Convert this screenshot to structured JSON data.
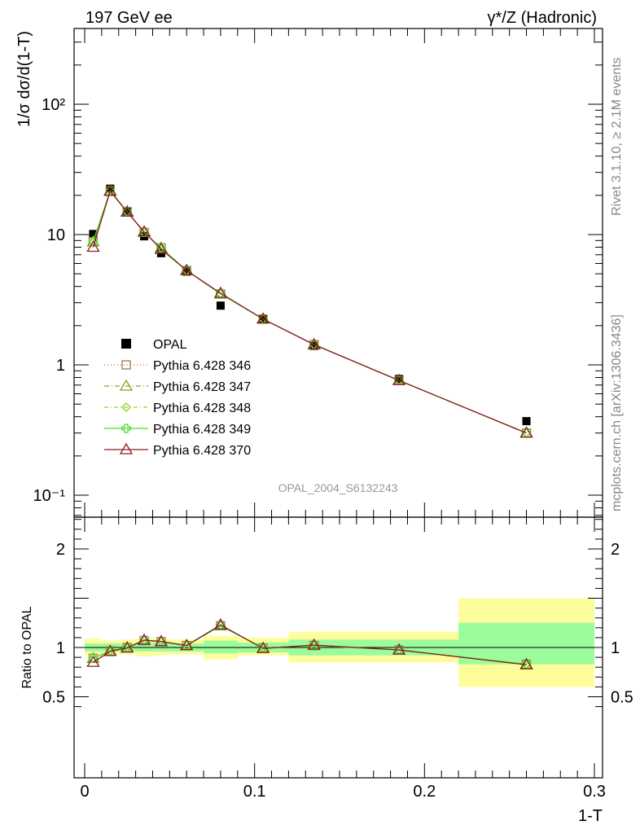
{
  "header": {
    "left_title": "197 GeV ee",
    "right_title": "γ*/Z (Hadronic)"
  },
  "side_text": {
    "rivet": "Rivet 3.1.10, ≥ 2.1M events",
    "mcplots": "mcplots.cern.ch [arXiv:1306.3436]"
  },
  "analysis_id": "OPAL_2004_S6132243",
  "chart_data": [
    {
      "type": "line",
      "panel": "main",
      "ylabel": "1/σ dσ/d(1-T)",
      "xlabel": "1-T",
      "yscale": "log",
      "xlim": [
        0,
        0.3
      ],
      "ylim": [
        0.06,
        400
      ],
      "ytick_labels": [
        "10⁻¹",
        "1",
        "10",
        "10²"
      ],
      "xtick_labels": [
        "0",
        "0.1",
        "0.2",
        "0.3"
      ],
      "x": [
        0.005,
        0.015,
        0.025,
        0.035,
        0.045,
        0.06,
        0.08,
        0.105,
        0.135,
        0.185,
        0.26
      ],
      "data": {
        "name": "OPAL",
        "values": [
          10.1,
          22.5,
          15.0,
          9.7,
          7.2,
          5.2,
          2.85,
          2.25,
          1.4,
          0.78,
          0.37
        ],
        "color": "#000000"
      },
      "series": [
        {
          "name": "Pythia 6.428 346",
          "color": "#a0784a",
          "marker": "square-open",
          "dash": "1,3",
          "values": [
            8.8,
            21.7,
            15.0,
            10.4,
            7.9,
            5.3,
            3.5,
            2.25,
            1.43,
            0.76,
            0.3
          ]
        },
        {
          "name": "Pythia 6.428 347",
          "color": "#8aa21f",
          "marker": "triangle-open",
          "dash": "6,3,1,3",
          "values": [
            8.8,
            21.7,
            15.0,
            10.4,
            7.9,
            5.3,
            3.5,
            2.25,
            1.43,
            0.76,
            0.3
          ]
        },
        {
          "name": "Pythia 6.428 348",
          "color": "#94d421",
          "marker": "diamond-open",
          "dash": "5,3,1,3",
          "values": [
            8.8,
            21.7,
            15.0,
            10.4,
            7.9,
            5.3,
            3.5,
            2.25,
            1.43,
            0.76,
            0.3
          ]
        },
        {
          "name": "Pythia 6.428 349",
          "color": "#4ddc2a",
          "marker": "cross-open",
          "dash": "",
          "values": [
            8.8,
            21.7,
            15.0,
            10.4,
            7.9,
            5.3,
            3.5,
            2.25,
            1.43,
            0.76,
            0.3
          ]
        },
        {
          "name": "Pythia 6.428 370",
          "color": "#8b1a2b",
          "marker": "triangle-open",
          "dash": "",
          "values": [
            8.0,
            21.5,
            14.9,
            10.5,
            7.7,
            5.3,
            3.55,
            2.25,
            1.43,
            0.76,
            0.3
          ]
        }
      ]
    },
    {
      "type": "line",
      "panel": "ratio",
      "ylabel": "Ratio to OPAL",
      "xlabel": "1-T",
      "xlim": [
        0,
        0.3
      ],
      "ylim": [
        0.35,
        2.3
      ],
      "ytick_labels": [
        "0.5",
        "1",
        "2"
      ],
      "xtick_labels": [
        "0",
        "0.1",
        "0.2",
        "0.3"
      ],
      "bands": [
        {
          "x0": 0.0,
          "x1": 0.01,
          "inner": [
            0.96,
            1.04
          ],
          "outer": [
            0.92,
            1.09
          ]
        },
        {
          "x0": 0.01,
          "x1": 0.02,
          "inner": [
            0.96,
            1.04
          ],
          "outer": [
            0.93,
            1.07
          ]
        },
        {
          "x0": 0.02,
          "x1": 0.03,
          "inner": [
            0.96,
            1.04
          ],
          "outer": [
            0.93,
            1.08
          ]
        },
        {
          "x0": 0.03,
          "x1": 0.04,
          "inner": [
            0.96,
            1.05
          ],
          "outer": [
            0.91,
            1.09
          ]
        },
        {
          "x0": 0.04,
          "x1": 0.05,
          "inner": [
            0.96,
            1.05
          ],
          "outer": [
            0.92,
            1.09
          ]
        },
        {
          "x0": 0.05,
          "x1": 0.07,
          "inner": [
            0.96,
            1.04
          ],
          "outer": [
            0.93,
            1.08
          ]
        },
        {
          "x0": 0.07,
          "x1": 0.09,
          "inner": [
            0.94,
            1.07
          ],
          "outer": [
            0.88,
            1.12
          ]
        },
        {
          "x0": 0.09,
          "x1": 0.12,
          "inner": [
            0.95,
            1.05
          ],
          "outer": [
            0.92,
            1.1
          ]
        },
        {
          "x0": 0.12,
          "x1": 0.15,
          "inner": [
            0.92,
            1.08
          ],
          "outer": [
            0.85,
            1.16
          ]
        },
        {
          "x0": 0.15,
          "x1": 0.22,
          "inner": [
            0.92,
            1.08
          ],
          "outer": [
            0.85,
            1.16
          ]
        },
        {
          "x0": 0.22,
          "x1": 0.3,
          "inner": [
            0.83,
            1.25
          ],
          "outer": [
            0.6,
            1.5
          ]
        }
      ],
      "series": [
        {
          "name": "Pythia 6.428 346",
          "color": "#a0784a",
          "marker": "square-open",
          "dash": "1,3",
          "values": [
            0.89,
            0.965,
            1.0,
            1.07,
            1.06,
            1.02,
            1.22,
            0.995,
            1.02,
            0.975,
            0.83
          ]
        },
        {
          "name": "Pythia 6.428 347",
          "color": "#8aa21f",
          "marker": "triangle-open",
          "dash": "6,3,1,3",
          "values": [
            0.89,
            0.965,
            1.0,
            1.07,
            1.06,
            1.02,
            1.22,
            0.995,
            1.02,
            0.975,
            0.83
          ]
        },
        {
          "name": "Pythia 6.428 348",
          "color": "#94d421",
          "marker": "diamond-open",
          "dash": "5,3,1,3",
          "values": [
            0.89,
            0.965,
            1.0,
            1.07,
            1.06,
            1.02,
            1.22,
            0.995,
            1.02,
            0.975,
            0.83
          ]
        },
        {
          "name": "Pythia 6.428 349",
          "color": "#4ddc2a",
          "marker": "cross-open",
          "dash": "",
          "values": [
            0.89,
            0.965,
            1.0,
            1.07,
            1.06,
            1.02,
            1.22,
            0.995,
            1.02,
            0.975,
            0.83
          ]
        },
        {
          "name": "Pythia 6.428 370",
          "color": "#8b1a2b",
          "marker": "triangle-open",
          "dash": "",
          "values": [
            0.85,
            0.96,
            0.995,
            1.075,
            1.06,
            1.02,
            1.23,
            0.99,
            1.025,
            0.975,
            0.825
          ]
        }
      ]
    }
  ],
  "colors": {
    "band_inner": "#9cfc9c",
    "band_outer": "#fdfd9c"
  }
}
